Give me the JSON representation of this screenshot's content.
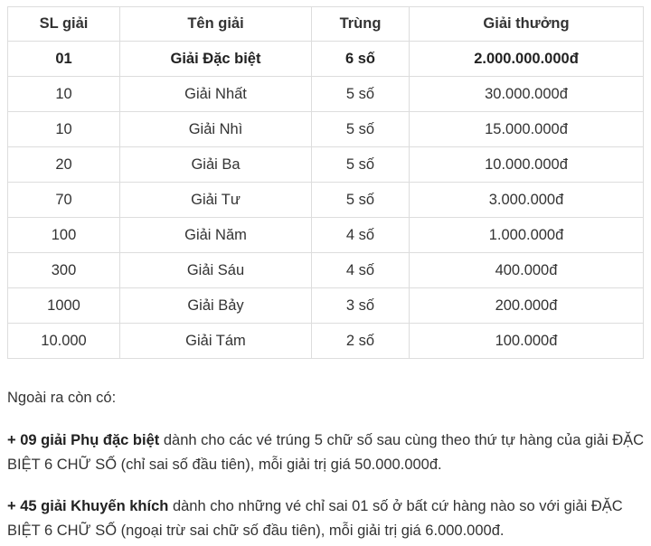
{
  "table": {
    "headers": [
      "SL giải",
      "Tên giải",
      "Trùng",
      "Giải thưởng"
    ],
    "rows": [
      [
        "01",
        "Giải Đặc biệt",
        "6 số",
        "2.000.000.000đ"
      ],
      [
        "10",
        "Giải Nhất",
        "5 số",
        "30.000.000đ"
      ],
      [
        "10",
        "Giải Nhì",
        "5 số",
        "15.000.000đ"
      ],
      [
        "20",
        "Giải Ba",
        "5 số",
        "10.000.000đ"
      ],
      [
        "70",
        "Giải Tư",
        "5 số",
        "3.000.000đ"
      ],
      [
        "100",
        "Giải Năm",
        "4 số",
        "1.000.000đ"
      ],
      [
        "300",
        "Giải Sáu",
        "4 số",
        "400.000đ"
      ],
      [
        "1000",
        "Giải Bảy",
        "3 số",
        "200.000đ"
      ],
      [
        "10.000",
        "Giải Tám",
        "2 số",
        "100.000đ"
      ]
    ]
  },
  "notes": {
    "intro": "Ngoài ra còn có:",
    "p1_bold": "+ 09 giải Phụ đặc biệt",
    "p1_text": " dành cho các vé trúng 5 chữ số sau cùng theo thứ tự hàng của giải ĐẶC BIỆT 6 CHỮ SỐ (chỉ sai số đầu tiên), mỗi giải trị giá 50.000.000đ.",
    "p2_bold": "+ 45 giải Khuyến khích",
    "p2_text": " dành cho những vé chỉ sai 01 số ở bất cứ hàng nào so với giải ĐẶC BIỆT 6 CHỮ SỐ (ngoại trừ sai chữ số đầu tiên), mỗi giải trị giá 6.000.000đ."
  }
}
